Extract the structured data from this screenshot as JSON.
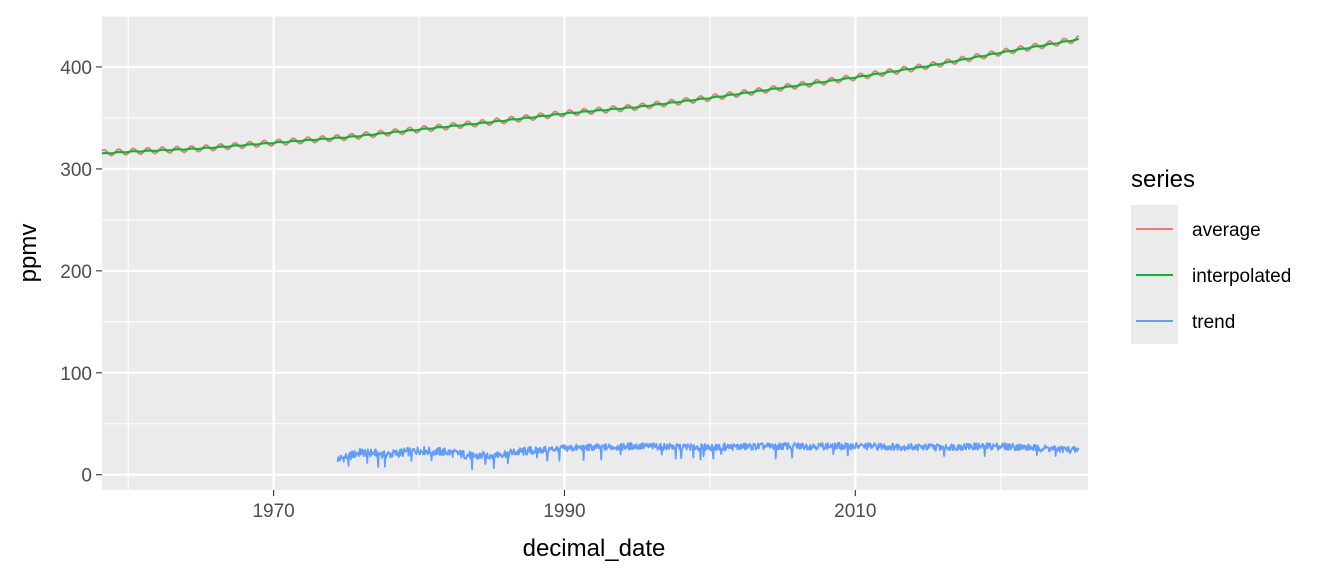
{
  "chart_data": {
    "type": "line",
    "xlabel": "decimal_date",
    "ylabel": "ppmv",
    "xlim": [
      1958.2,
      2026.0
    ],
    "ylim": [
      -15,
      450
    ],
    "x_ticks": [
      1970,
      1990,
      2010
    ],
    "x_tick_labels": [
      "1970",
      "1990",
      "2010"
    ],
    "y_ticks": [
      0,
      100,
      200,
      300,
      400
    ],
    "y_tick_labels": [
      "0",
      "100",
      "200",
      "300",
      "400"
    ],
    "grid": true,
    "legend": {
      "title": "series",
      "position": "right"
    },
    "series": [
      {
        "name": "average",
        "color": "#F8766D",
        "x_range": [
          1958.2,
          2025.4
        ],
        "seasonal_amplitude": 3,
        "x": [
          1958.2,
          1960,
          1965,
          1970,
          1975,
          1980,
          1985,
          1990,
          1995,
          2000,
          2005,
          2010,
          2015,
          2020,
          2025.4
        ],
        "values": [
          315.7,
          316.9,
          320.0,
          325.7,
          331.1,
          338.7,
          346.1,
          354.4,
          360.8,
          369.7,
          379.8,
          389.9,
          401.0,
          414.2,
          427.5
        ]
      },
      {
        "name": "interpolated",
        "color": "#00BA38",
        "x_range": [
          1958.2,
          2025.4
        ],
        "seasonal_amplitude": 0.4,
        "x": [
          1958.2,
          1960,
          1965,
          1970,
          1975,
          1980,
          1985,
          1990,
          1995,
          2000,
          2005,
          2010,
          2015,
          2020,
          2025.4
        ],
        "values": [
          315.0,
          316.8,
          320.0,
          325.6,
          331.0,
          338.6,
          346.0,
          354.3,
          360.7,
          369.6,
          379.7,
          389.8,
          400.9,
          414.1,
          427.2
        ]
      },
      {
        "name": "trend",
        "color": "#619CFF",
        "x_range": [
          1974.4,
          2025.4
        ],
        "typical_range": [
          18,
          30
        ],
        "x": [
          1974.4,
          1976,
          1978,
          1980,
          1982,
          1984,
          1986,
          1988,
          1990,
          1995,
          2000,
          2005,
          2010,
          2015,
          2020,
          2023,
          2025.4
        ],
        "values": [
          15,
          22,
          20,
          24,
          22,
          18,
          21,
          24,
          26,
          28,
          27,
          28,
          28,
          27,
          28,
          26,
          24
        ]
      }
    ]
  }
}
